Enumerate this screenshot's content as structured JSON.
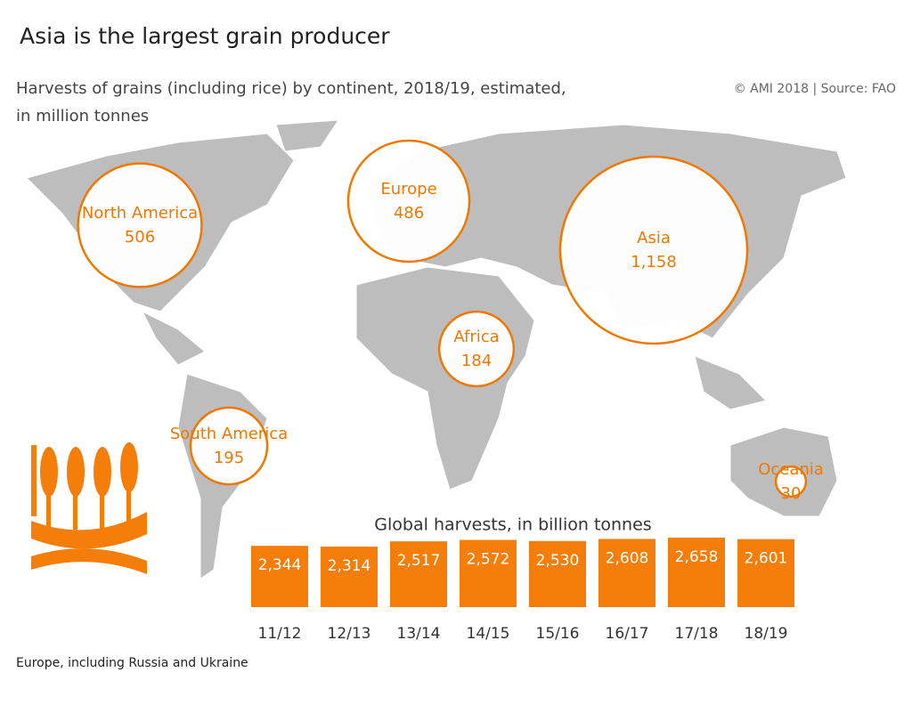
{
  "title": "Asia is the largest grain producer",
  "subtitle": "Harvests of grains (including rice) by continent, 2018/19, estimated,",
  "subtitle2": "in million tonnes",
  "source": "© AMI 2018 | Source: FAO",
  "footnote": "Europe, including Russia and Ukraine",
  "chart_data": [
    {
      "type": "bubble",
      "categories": [
        "North America",
        "Europe",
        "Asia",
        "Africa",
        "South America",
        "Oceania"
      ],
      "values": [
        506,
        486,
        1158,
        184,
        195,
        30
      ],
      "value_labels": [
        "506",
        "486",
        "1,158",
        "184",
        "195",
        "30"
      ],
      "color": "#f07800"
    },
    {
      "type": "bar",
      "title": "Global harvests, in billion tonnes",
      "categories": [
        "11/12",
        "12/13",
        "13/14",
        "14/15",
        "15/16",
        "16/17",
        "17/18",
        "18/19"
      ],
      "values": [
        2344,
        2314,
        2517,
        2572,
        2530,
        2608,
        2658,
        2601
      ],
      "value_labels": [
        "2,344",
        "2,314",
        "2,517",
        "2,572",
        "2,530",
        "2,608",
        "2,658",
        "2,601"
      ],
      "color": "#f57d0a"
    }
  ]
}
